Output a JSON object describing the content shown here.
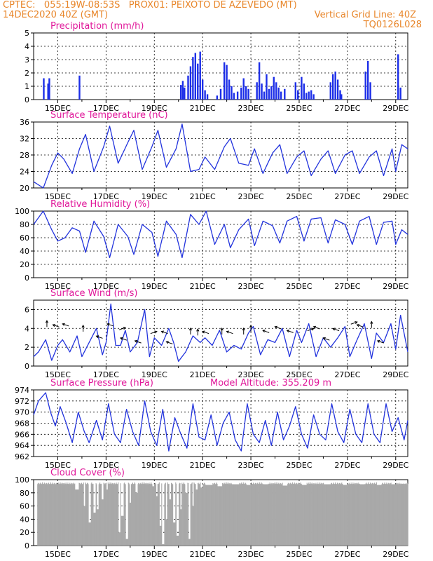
{
  "header": {
    "line1": "CPTEC:   055:19W-08:53S   PROX01: PEIXOTO DE AZEVEDO (MT)",
    "line2_left": "14DEC2020 40Z (GMT)",
    "line2_right": "Vertical Grid Line: 40Z",
    "line3_right": "TQ0126L028"
  },
  "colors": {
    "header": "#e8862a",
    "panel_title": "#e0189a",
    "line": "#2233dd",
    "bar": "#1c2ee8",
    "cloud": "#a9a9a9",
    "arrow": "#000000"
  },
  "chart_data": [
    {
      "type": "bar",
      "title": "Precipitation (mm/h)",
      "x_tick_labels": [
        "15DEC",
        "17DEC",
        "19DEC",
        "21DEC",
        "23DEC",
        "25DEC",
        "27DEC",
        "29DEC"
      ],
      "ylim": [
        0,
        5
      ],
      "y_ticks": [
        0,
        1,
        2,
        3,
        4,
        5
      ],
      "grid": "dashed",
      "bars": [
        [
          14.42,
          1.6
        ],
        [
          14.6,
          1.2
        ],
        [
          14.65,
          1.6
        ],
        [
          15.9,
          1.8
        ],
        [
          20.1,
          1.1
        ],
        [
          20.18,
          1.4
        ],
        [
          20.25,
          0.9
        ],
        [
          20.4,
          1.8
        ],
        [
          20.5,
          2.5
        ],
        [
          20.6,
          3.2
        ],
        [
          20.7,
          3.5
        ],
        [
          20.8,
          2.7
        ],
        [
          20.9,
          3.6
        ],
        [
          21.0,
          1.5
        ],
        [
          21.1,
          0.7
        ],
        [
          21.2,
          0.4
        ],
        [
          21.6,
          0.3
        ],
        [
          21.75,
          0.8
        ],
        [
          21.9,
          2.8
        ],
        [
          22.0,
          2.6
        ],
        [
          22.1,
          1.5
        ],
        [
          22.2,
          1.0
        ],
        [
          22.3,
          0.5
        ],
        [
          22.45,
          0.6
        ],
        [
          22.6,
          0.9
        ],
        [
          22.7,
          1.6
        ],
        [
          22.8,
          1.0
        ],
        [
          22.9,
          0.8
        ],
        [
          23.25,
          1.3
        ],
        [
          23.35,
          2.8
        ],
        [
          23.45,
          1.2
        ],
        [
          23.55,
          0.6
        ],
        [
          23.65,
          1.9
        ],
        [
          23.75,
          0.8
        ],
        [
          23.85,
          1.0
        ],
        [
          23.95,
          1.7
        ],
        [
          24.05,
          1.3
        ],
        [
          24.15,
          0.9
        ],
        [
          24.25,
          0.6
        ],
        [
          24.4,
          0.8
        ],
        [
          24.85,
          1.3
        ],
        [
          24.95,
          0.7
        ],
        [
          25.1,
          1.7
        ],
        [
          25.2,
          1.2
        ],
        [
          25.3,
          0.5
        ],
        [
          25.4,
          0.6
        ],
        [
          25.5,
          0.7
        ],
        [
          25.6,
          0.4
        ],
        [
          26.3,
          1.3
        ],
        [
          26.4,
          1.9
        ],
        [
          26.5,
          2.1
        ],
        [
          26.6,
          1.5
        ],
        [
          26.7,
          0.7
        ],
        [
          26.75,
          0.4
        ],
        [
          27.75,
          2.1
        ],
        [
          27.85,
          2.9
        ],
        [
          27.95,
          1.3
        ],
        [
          29.1,
          3.4
        ],
        [
          29.2,
          0.9
        ]
      ]
    },
    {
      "type": "line",
      "title": "Surface Temperature (nC)",
      "x_tick_labels": [
        "15DEC",
        "17DEC",
        "19DEC",
        "21DEC",
        "23DEC",
        "25DEC",
        "27DEC",
        "29DEC"
      ],
      "ylim": [
        20,
        36
      ],
      "y_ticks": [
        20,
        24,
        28,
        32,
        36
      ],
      "grid": "dashed",
      "x": [
        14.0,
        14.4,
        14.75,
        15.0,
        15.25,
        15.6,
        15.9,
        16.15,
        16.5,
        16.9,
        17.15,
        17.5,
        17.9,
        18.15,
        18.5,
        18.9,
        19.15,
        19.5,
        19.9,
        20.15,
        20.5,
        20.85,
        21.1,
        21.5,
        21.9,
        22.15,
        22.5,
        22.9,
        23.15,
        23.5,
        23.9,
        24.2,
        24.5,
        24.9,
        25.2,
        25.5,
        25.9,
        26.2,
        26.5,
        26.9,
        27.2,
        27.5,
        27.9,
        28.2,
        28.5,
        28.85,
        29.0,
        29.25,
        29.5
      ],
      "y": [
        21.5,
        20.0,
        25.5,
        28.5,
        27.0,
        23.5,
        29.5,
        33.0,
        24.0,
        30.0,
        35.0,
        26.0,
        31.0,
        34.0,
        24.5,
        30.0,
        34.0,
        25.0,
        29.5,
        35.5,
        24.0,
        24.5,
        27.5,
        24.5,
        30.0,
        32.0,
        26.0,
        25.5,
        29.5,
        23.5,
        28.5,
        30.5,
        23.5,
        27.5,
        29.0,
        23.0,
        27.0,
        29.0,
        23.5,
        28.0,
        29.0,
        23.5,
        27.5,
        29.0,
        23.0,
        29.5,
        24.0,
        30.5,
        29.5
      ]
    },
    {
      "type": "line",
      "title": "Relative Humidity (%)",
      "x_tick_labels": [
        "15DEC",
        "17DEC",
        "19DEC",
        "21DEC",
        "23DEC",
        "25DEC",
        "27DEC",
        "29DEC"
      ],
      "ylim": [
        0,
        100
      ],
      "y_ticks": [
        0,
        20,
        40,
        60,
        80,
        100
      ],
      "grid": "dashed",
      "x": [
        14.0,
        14.4,
        14.75,
        15.0,
        15.3,
        15.6,
        15.9,
        16.15,
        16.5,
        16.9,
        17.15,
        17.5,
        17.9,
        18.15,
        18.5,
        18.9,
        19.15,
        19.5,
        19.9,
        20.15,
        20.5,
        20.85,
        21.15,
        21.5,
        21.9,
        22.15,
        22.5,
        22.9,
        23.15,
        23.5,
        23.9,
        24.2,
        24.5,
        24.9,
        25.2,
        25.5,
        25.9,
        26.2,
        26.5,
        26.9,
        27.2,
        27.5,
        27.9,
        28.2,
        28.5,
        28.85,
        29.0,
        29.25,
        29.5
      ],
      "y": [
        80,
        100,
        72,
        55,
        60,
        75,
        70,
        38,
        85,
        62,
        30,
        80,
        62,
        35,
        80,
        68,
        32,
        85,
        65,
        30,
        95,
        80,
        100,
        50,
        80,
        45,
        72,
        88,
        48,
        85,
        78,
        52,
        85,
        92,
        55,
        88,
        90,
        52,
        87,
        80,
        50,
        85,
        92,
        50,
        83,
        85,
        50,
        72,
        65
      ]
    },
    {
      "type": "line",
      "title": "Surface Wind (m/s)",
      "x_tick_labels": [
        "15DEC",
        "17DEC",
        "19DEC",
        "21DEC",
        "23DEC",
        "25DEC",
        "27DEC",
        "29DEC"
      ],
      "ylim": [
        0,
        7
      ],
      "y_ticks": [
        0,
        2,
        4,
        6
      ],
      "grid": "dashed",
      "x": [
        14.0,
        14.2,
        14.5,
        14.75,
        15.0,
        15.2,
        15.5,
        15.8,
        16.0,
        16.3,
        16.6,
        16.85,
        17.0,
        17.2,
        17.4,
        17.6,
        17.8,
        18.0,
        18.3,
        18.6,
        18.8,
        19.0,
        19.3,
        19.6,
        19.8,
        20.0,
        20.3,
        20.6,
        20.9,
        21.1,
        21.4,
        21.7,
        22.0,
        22.3,
        22.6,
        22.9,
        23.1,
        23.4,
        23.7,
        24.0,
        24.3,
        24.6,
        24.9,
        25.1,
        25.4,
        25.7,
        26.0,
        26.3,
        26.6,
        26.9,
        27.1,
        27.4,
        27.7,
        28.0,
        28.2,
        28.5,
        28.8,
        29.0,
        29.2,
        29.5
      ],
      "y": [
        1.0,
        1.5,
        2.8,
        0.6,
        2.2,
        2.8,
        1.5,
        3.2,
        1.0,
        2.5,
        4.0,
        1.2,
        2.5,
        6.6,
        2.2,
        2.2,
        3.8,
        1.5,
        2.5,
        6.0,
        1.0,
        3.0,
        2.2,
        4.0,
        2.5,
        0.5,
        1.5,
        3.2,
        2.5,
        3.0,
        2.2,
        3.8,
        1.5,
        2.2,
        1.8,
        3.5,
        4.2,
        1.2,
        2.8,
        2.5,
        4.0,
        1.0,
        3.8,
        2.5,
        4.5,
        1.0,
        3.0,
        2.0,
        3.0,
        4.2,
        1.0,
        2.8,
        4.5,
        0.8,
        3.5,
        2.5,
        4.5,
        1.8,
        5.4,
        1.5
      ],
      "arrows": [
        [
          14.55,
          4.3,
          "up"
        ],
        [
          15.0,
          4.2,
          "left"
        ],
        [
          15.4,
          4.3,
          "left"
        ],
        [
          16.05,
          3.8,
          "up"
        ],
        [
          16.8,
          3.0,
          "left"
        ],
        [
          17.25,
          4.3,
          "left"
        ],
        [
          17.6,
          3.9,
          "right"
        ],
        [
          17.8,
          2.8,
          "left"
        ],
        [
          18.4,
          2.5,
          "left"
        ],
        [
          18.9,
          3.5,
          "right"
        ],
        [
          19.5,
          3.5,
          "left"
        ],
        [
          19.7,
          2.4,
          "left"
        ],
        [
          20.5,
          3.5,
          "up"
        ],
        [
          20.8,
          3.4,
          "up"
        ],
        [
          21.2,
          3.5,
          "left"
        ],
        [
          21.8,
          3.5,
          "up"
        ],
        [
          22.2,
          3.5,
          "left"
        ],
        [
          22.7,
          3.5,
          "up"
        ],
        [
          23.0,
          3.8,
          "up"
        ],
        [
          23.7,
          3.6,
          "left"
        ],
        [
          24.2,
          4.0,
          "left"
        ],
        [
          24.7,
          3.6,
          "left"
        ],
        [
          25.4,
          3.8,
          "right"
        ],
        [
          25.8,
          4.0,
          "left"
        ],
        [
          26.2,
          2.8,
          "left"
        ],
        [
          26.6,
          3.8,
          "left"
        ],
        [
          27.2,
          4.5,
          "right"
        ],
        [
          27.6,
          4.2,
          "left"
        ],
        [
          28.0,
          4.2,
          "up"
        ],
        [
          28.45,
          2.5,
          "left"
        ]
      ]
    },
    {
      "type": "line",
      "title": "Surface Pressure (hPa)",
      "annotation": "Model Altitude: 355.209 m",
      "x_tick_labels": [
        "15DEC",
        "17DEC",
        "19DEC",
        "21DEC",
        "23DEC",
        "25DEC",
        "27DEC",
        "29DEC"
      ],
      "ylim": [
        962,
        974
      ],
      "y_ticks": [
        962,
        964,
        966,
        968,
        970,
        972,
        974
      ],
      "grid": "dashed",
      "x": [
        14.0,
        14.2,
        14.5,
        14.7,
        14.9,
        15.1,
        15.35,
        15.6,
        15.85,
        16.1,
        16.3,
        16.6,
        16.85,
        17.1,
        17.35,
        17.6,
        17.85,
        18.1,
        18.35,
        18.6,
        18.85,
        19.1,
        19.35,
        19.6,
        19.85,
        20.1,
        20.35,
        20.6,
        20.85,
        21.1,
        21.35,
        21.6,
        21.85,
        22.1,
        22.35,
        22.6,
        22.85,
        23.1,
        23.35,
        23.6,
        23.85,
        24.1,
        24.35,
        24.6,
        24.85,
        25.1,
        25.35,
        25.6,
        25.85,
        26.1,
        26.35,
        26.6,
        26.85,
        27.1,
        27.35,
        27.6,
        27.85,
        28.1,
        28.35,
        28.6,
        28.85,
        29.1,
        29.35,
        29.5
      ],
      "y": [
        969.5,
        972,
        973.5,
        970,
        967.5,
        971,
        968,
        964.5,
        970,
        966.5,
        964.5,
        968.5,
        965,
        971.5,
        966,
        964.5,
        970.5,
        966.5,
        964,
        972,
        966.5,
        964,
        970.5,
        963,
        969,
        966,
        963.5,
        971.5,
        965.5,
        965,
        969.5,
        964,
        968,
        970,
        965,
        963,
        971.5,
        966,
        964.5,
        968.5,
        964,
        970,
        965,
        967.5,
        971,
        966,
        963.5,
        969.5,
        966,
        965,
        971.5,
        966.5,
        964.5,
        970.5,
        966,
        964.5,
        971.5,
        966,
        964.5,
        971.5,
        966.5,
        969,
        965,
        968.5
      ]
    },
    {
      "type": "bar",
      "title": "Cloud Cover (%)",
      "x_tick_labels": [
        "15DEC",
        "17DEC",
        "19DEC",
        "21DEC",
        "23DEC",
        "25DEC",
        "27DEC",
        "29DEC"
      ],
      "ylim": [
        0,
        100
      ],
      "y_ticks": [
        0,
        20,
        40,
        60,
        80,
        100
      ],
      "grid": "dashed",
      "base": 96,
      "dips": [
        [
          15.7,
          15.85,
          85
        ],
        [
          16.05,
          16.12,
          60
        ],
        [
          16.25,
          16.35,
          35
        ],
        [
          16.45,
          16.55,
          50
        ],
        [
          16.6,
          16.68,
          55
        ],
        [
          16.8,
          16.88,
          70
        ],
        [
          17.0,
          17.05,
          85
        ],
        [
          17.5,
          17.58,
          20
        ],
        [
          17.6,
          17.72,
          45
        ],
        [
          17.8,
          17.9,
          10
        ],
        [
          17.95,
          18.02,
          65
        ],
        [
          18.2,
          18.3,
          80
        ],
        [
          18.9,
          18.98,
          90
        ],
        [
          19.05,
          19.12,
          75
        ],
        [
          19.2,
          19.28,
          30
        ],
        [
          19.3,
          19.4,
          2
        ],
        [
          19.45,
          19.52,
          40
        ],
        [
          19.6,
          19.68,
          70
        ],
        [
          19.75,
          19.85,
          35
        ],
        [
          19.9,
          20.0,
          15
        ],
        [
          20.05,
          20.12,
          55
        ],
        [
          20.25,
          20.35,
          80
        ],
        [
          20.4,
          20.48,
          10
        ],
        [
          20.55,
          20.62,
          60
        ],
        [
          20.7,
          20.78,
          85
        ],
        [
          20.9,
          21.0,
          88
        ],
        [
          21.1,
          21.4,
          92
        ],
        [
          21.6,
          21.8,
          90
        ],
        [
          22.2,
          22.5,
          93
        ],
        [
          22.8,
          23.0,
          92
        ],
        [
          23.5,
          23.7,
          93
        ],
        [
          24.3,
          24.5,
          91
        ],
        [
          25.1,
          25.3,
          92
        ],
        [
          26.0,
          26.3,
          93
        ],
        [
          26.8,
          27.0,
          92
        ],
        [
          27.5,
          27.7,
          93
        ],
        [
          28.2,
          28.4,
          92
        ],
        [
          28.8,
          29.0,
          93
        ],
        [
          29.2,
          29.4,
          94
        ]
      ]
    }
  ]
}
